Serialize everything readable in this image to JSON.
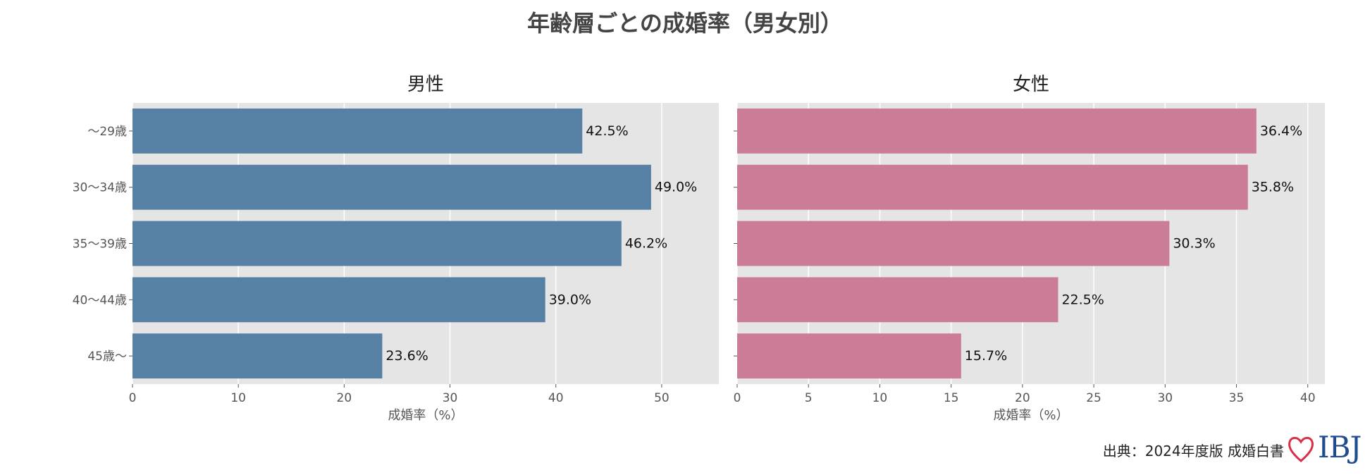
{
  "title": "年齢層ごとの成婚率（男女別）",
  "source": "出典：2024年度版 成婚白書",
  "logo": {
    "text": "IBJ",
    "heart_color": "#d9304a",
    "text_color": "#1f4b8f"
  },
  "chart_data": [
    {
      "type": "bar",
      "orientation": "horizontal",
      "subtitle": "男性",
      "categories": [
        "～29歳",
        "30～34歳",
        "35～39歳",
        "40～44歳",
        "45歳～"
      ],
      "values": [
        42.5,
        49.0,
        46.2,
        39.0,
        23.6
      ],
      "value_labels": [
        "42.5%",
        "49.0%",
        "46.2%",
        "39.0%",
        "23.6%"
      ],
      "xlabel": "成婚率（%）",
      "xlim": [
        0,
        55.4
      ],
      "xticks": [
        0,
        10,
        20,
        30,
        40,
        50
      ],
      "grid": true,
      "bar_color": "#5681a5"
    },
    {
      "type": "bar",
      "orientation": "horizontal",
      "subtitle": "女性",
      "categories": [
        "～29歳",
        "30～34歳",
        "35～39歳",
        "40～44歳",
        "45歳～"
      ],
      "values": [
        36.4,
        35.8,
        30.3,
        22.5,
        15.7
      ],
      "value_labels": [
        "36.4%",
        "35.8%",
        "30.3%",
        "22.5%",
        "15.7%"
      ],
      "xlabel": "成婚率（%）",
      "xlim": [
        0,
        41.2
      ],
      "xticks": [
        0,
        5,
        10,
        15,
        20,
        25,
        30,
        35,
        40
      ],
      "grid": true,
      "bar_color": "#cb7c96"
    }
  ],
  "colors": {
    "panel_bg": "#e5e5e5",
    "grid": "#ffffff",
    "tick_text": "#555555"
  }
}
